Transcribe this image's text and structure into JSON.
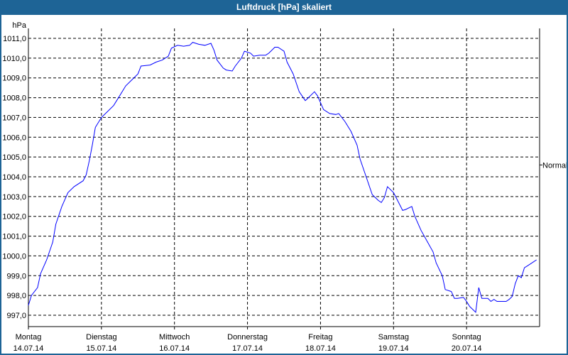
{
  "window": {
    "title": "Luftdruck [hPa] skaliert"
  },
  "chart_data": {
    "type": "line",
    "title": "Luftdruck [hPa] skaliert",
    "ylabel": "hPa",
    "xlabel": "",
    "ylim": [
      996.5,
      1011.5
    ],
    "yticks": [
      997,
      998,
      999,
      1000,
      1001,
      1002,
      1003,
      1004,
      1005,
      1006,
      1007,
      1008,
      1009,
      1010,
      1011
    ],
    "ytick_labels": [
      "997,0",
      "998,0",
      "999,0",
      "1000,0",
      "1001,0",
      "1002,0",
      "1003,0",
      "1004,0",
      "1005,0",
      "1006,0",
      "1007,0",
      "1008,0",
      "1009,0",
      "1010,0",
      "1011,0"
    ],
    "xlim": [
      "14.07.14 00:00",
      "21.07.14 00:00"
    ],
    "xticks": [
      {
        "day": "Montag",
        "date": "14.07.14"
      },
      {
        "day": "Dienstag",
        "date": "15.07.14"
      },
      {
        "day": "Mittwoch",
        "date": "16.07.14"
      },
      {
        "day": "Donnerstag",
        "date": "17.07.14"
      },
      {
        "day": "Freitag",
        "date": "18.07.14"
      },
      {
        "day": "Samstag",
        "date": "19.07.14"
      },
      {
        "day": "Sonntag",
        "date": "20.07.14"
      }
    ],
    "grid": true,
    "grid_style": "dashed",
    "line_color": "#0000ff",
    "annotations": [
      {
        "text": "Normal",
        "y": 1004.6,
        "side": "right"
      }
    ],
    "series": [
      {
        "x": [
          "14.07.14 00:00",
          "14.07.14 01:00",
          "14.07.14 03:00",
          "14.07.14 04:00",
          "14.07.14 06:00",
          "14.07.14 08:00",
          "14.07.14 09:00",
          "14.07.14 11:00",
          "14.07.14 13:00",
          "14.07.14 15:00",
          "14.07.14 18:00",
          "14.07.14 19:00",
          "14.07.14 20:00",
          "14.07.14 21:00",
          "14.07.14 22:00",
          "15.07.14 00:00",
          "15.07.14 02:00",
          "15.07.14 04:00",
          "15.07.14 06:00",
          "15.07.14 08:00",
          "15.07.14 10:00",
          "15.07.14 12:00",
          "15.07.14 13:00",
          "15.07.14 16:00",
          "15.07.14 18:00",
          "15.07.14 20:00",
          "15.07.14 22:00",
          "15.07.14 23:00",
          "16.07.14 01:00",
          "16.07.14 03:00",
          "16.07.14 05:00",
          "16.07.14 06:00",
          "16.07.14 08:00",
          "16.07.14 10:00",
          "16.07.14 12:00",
          "16.07.14 13:00",
          "16.07.14 14:00",
          "16.07.14 16:00",
          "16.07.14 17:00",
          "16.07.14 19:00",
          "16.07.14 20:00",
          "16.07.14 22:00",
          "16.07.14 23:00",
          "17.07.14 01:00",
          "17.07.14 02:00",
          "17.07.14 04:00",
          "17.07.14 06:00",
          "17.07.14 07:00",
          "17.07.14 09:00",
          "17.07.14 10:00",
          "17.07.14 12:00",
          "17.07.14 13:00",
          "17.07.14 15:00",
          "17.07.14 17:00",
          "17.07.14 19:00",
          "17.07.14 20:00",
          "17.07.14 22:00",
          "17.07.14 23:00",
          "18.07.14 01:00",
          "18.07.14 03:00",
          "18.07.14 05:00",
          "18.07.14 06:00",
          "18.07.14 08:00",
          "18.07.14 10:00",
          "18.07.14 12:00",
          "18.07.14 13:00",
          "18.07.14 15:00",
          "18.07.14 17:00",
          "18.07.14 19:00",
          "18.07.14 20:00",
          "18.07.14 21:00",
          "18.07.14 22:00",
          "19.07.14 00:00",
          "19.07.14 01:00",
          "19.07.14 03:00",
          "19.07.14 04:00",
          "19.07.14 06:00",
          "19.07.14 07:00",
          "19.07.14 09:00",
          "19.07.14 11:00",
          "19.07.14 13:00",
          "19.07.14 14:00",
          "19.07.14 16:00",
          "19.07.14 17:00",
          "19.07.14 19:00",
          "19.07.14 20:00",
          "19.07.14 21:00",
          "19.07.14 23:00",
          "20.07.14 00:00",
          "20.07.14 01:00",
          "20.07.14 03:00",
          "20.07.14 04:00",
          "20.07.14 05:00",
          "20.07.14 07:00",
          "20.07.14 08:00",
          "20.07.14 09:00",
          "20.07.14 10:00",
          "20.07.14 13:00",
          "20.07.14 14:00",
          "20.07.14 15:00",
          "20.07.14 16:00",
          "20.07.14 17:00",
          "20.07.14 18:00",
          "20.07.14 19:00",
          "20.07.14 20:00",
          "20.07.14 22:00",
          "20.07.14 23:00"
        ],
        "values": [
          997.5,
          998.0,
          998.4,
          999.1,
          999.8,
          1000.7,
          1001.6,
          1002.5,
          1003.2,
          1003.5,
          1003.8,
          1004.1,
          1004.8,
          1005.6,
          1006.5,
          1007.0,
          1007.3,
          1007.6,
          1008.1,
          1008.6,
          1008.9,
          1009.2,
          1009.6,
          1009.65,
          1009.8,
          1009.9,
          1010.1,
          1010.5,
          1010.65,
          1010.6,
          1010.65,
          1010.8,
          1010.7,
          1010.65,
          1010.75,
          1010.4,
          1009.9,
          1009.5,
          1009.4,
          1009.35,
          1009.6,
          1010.0,
          1010.35,
          1010.25,
          1010.1,
          1010.15,
          1010.15,
          1010.25,
          1010.55,
          1010.55,
          1010.35,
          1009.8,
          1009.2,
          1008.3,
          1007.85,
          1008.0,
          1008.3,
          1008.1,
          1007.4,
          1007.2,
          1007.15,
          1007.2,
          1006.8,
          1006.3,
          1005.6,
          1004.9,
          1004.0,
          1003.1,
          1002.8,
          1002.7,
          1002.95,
          1003.5,
          1003.2,
          1002.9,
          1002.3,
          1002.35,
          1002.5,
          1002.0,
          1001.3,
          1000.75,
          1000.2,
          999.65,
          999.0,
          998.3,
          998.2,
          997.85,
          997.85,
          997.9,
          997.7,
          997.45,
          997.15,
          998.4,
          997.85,
          997.85,
          997.7,
          997.8,
          997.7,
          997.7,
          997.8,
          997.95,
          998.6,
          999.0,
          998.9,
          999.4,
          999.5,
          999.7,
          999.8
        ]
      }
    ]
  }
}
